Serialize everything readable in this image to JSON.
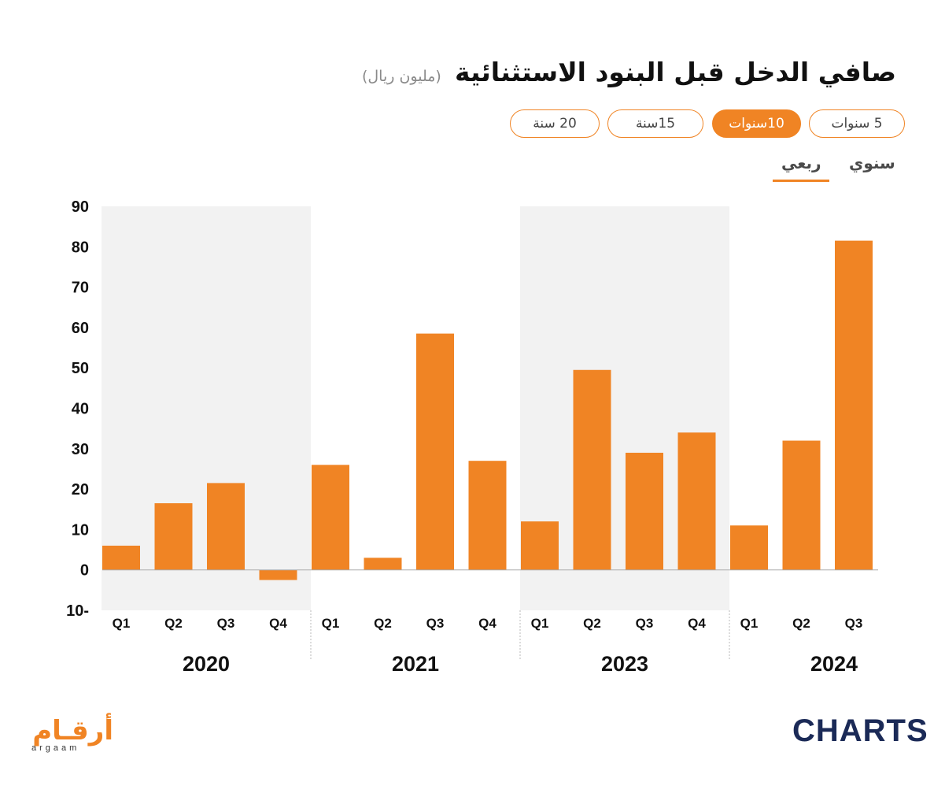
{
  "header": {
    "title": "صافي الدخل قبل البنود الاستثنائية",
    "unit": "(مليون ريال)"
  },
  "range_buttons": [
    {
      "label": "5 سنوات",
      "active": false
    },
    {
      "label": "10سنوات",
      "active": true
    },
    {
      "label": "15سنة",
      "active": false
    },
    {
      "label": "20 سنة",
      "active": false
    }
  ],
  "view_tabs": {
    "annual": "سنوي",
    "quarterly": "ربعي",
    "selected": "quarterly"
  },
  "brand": {
    "argaam_ar": "أرقـام",
    "argaam_en": "argaam",
    "charts": "CHARTS"
  },
  "colors": {
    "accent": "#f08424",
    "bar": "#f08424",
    "band": "#f2f2f2",
    "navy": "#1b2a57"
  },
  "chart_data": {
    "type": "bar",
    "title": "صافي الدخل قبل البنود الاستثنائية",
    "ylabel": "(مليون ريال)",
    "ylim": [
      -10,
      90
    ],
    "yticks": [
      -10,
      0,
      10,
      20,
      30,
      40,
      50,
      60,
      70,
      80,
      90
    ],
    "ytick_labels": [
      "10-",
      "0",
      "10",
      "20",
      "30",
      "40",
      "50",
      "60",
      "70",
      "80",
      "90"
    ],
    "years": [
      {
        "label": "2020",
        "shaded": true,
        "quarters": [
          "Q1",
          "Q2",
          "Q3",
          "Q4"
        ],
        "values": [
          6,
          16.5,
          21.5,
          -2.5
        ]
      },
      {
        "label": "2021",
        "shaded": false,
        "quarters": [
          "Q1",
          "Q2",
          "Q3",
          "Q4"
        ],
        "values": [
          26,
          3,
          58.5,
          27
        ]
      },
      {
        "label": "2023",
        "shaded": true,
        "quarters": [
          "Q1",
          "Q2",
          "Q3",
          "Q4"
        ],
        "values": [
          12,
          49.5,
          29,
          34
        ]
      },
      {
        "label": "2024",
        "shaded": false,
        "quarters": [
          "Q1",
          "Q2",
          "Q3"
        ],
        "values": [
          11,
          32,
          81.5
        ]
      }
    ],
    "grid": false,
    "legend": "none"
  }
}
